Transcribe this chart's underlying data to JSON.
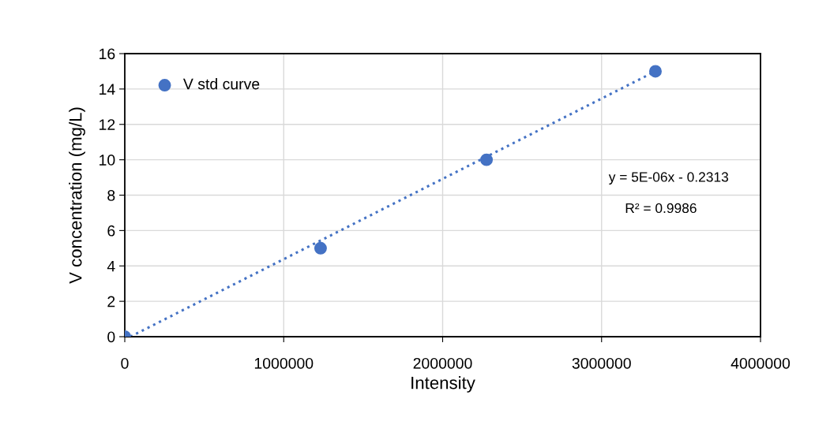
{
  "chart_data": {
    "type": "scatter",
    "xlabel": "Intensity",
    "ylabel": "V concentration (mg/L)",
    "x": [
      0,
      1232000,
      2276000,
      3339000
    ],
    "series": [
      {
        "name": "V std curve",
        "color": "#4472c4",
        "values": [
          0,
          5,
          10,
          15
        ],
        "marker": "circle"
      },
      {
        "type": "line",
        "color": "#4472c4",
        "x": [
          35000,
          3339000
        ],
        "values": [
          0,
          15
        ],
        "line_style": "dotted",
        "marker": "none"
      }
    ],
    "xlim": [
      0,
      4000000
    ],
    "xticks": [
      0,
      1000000,
      2000000,
      3000000,
      4000000
    ],
    "ylim": [
      0,
      16
    ],
    "yticks": [
      0,
      2,
      4,
      6,
      8,
      10,
      12,
      14,
      16
    ],
    "grid": true,
    "legend": "top left",
    "annotations": [
      "y = 5E-06x - 0.2313",
      "R² = 0.9986"
    ]
  }
}
